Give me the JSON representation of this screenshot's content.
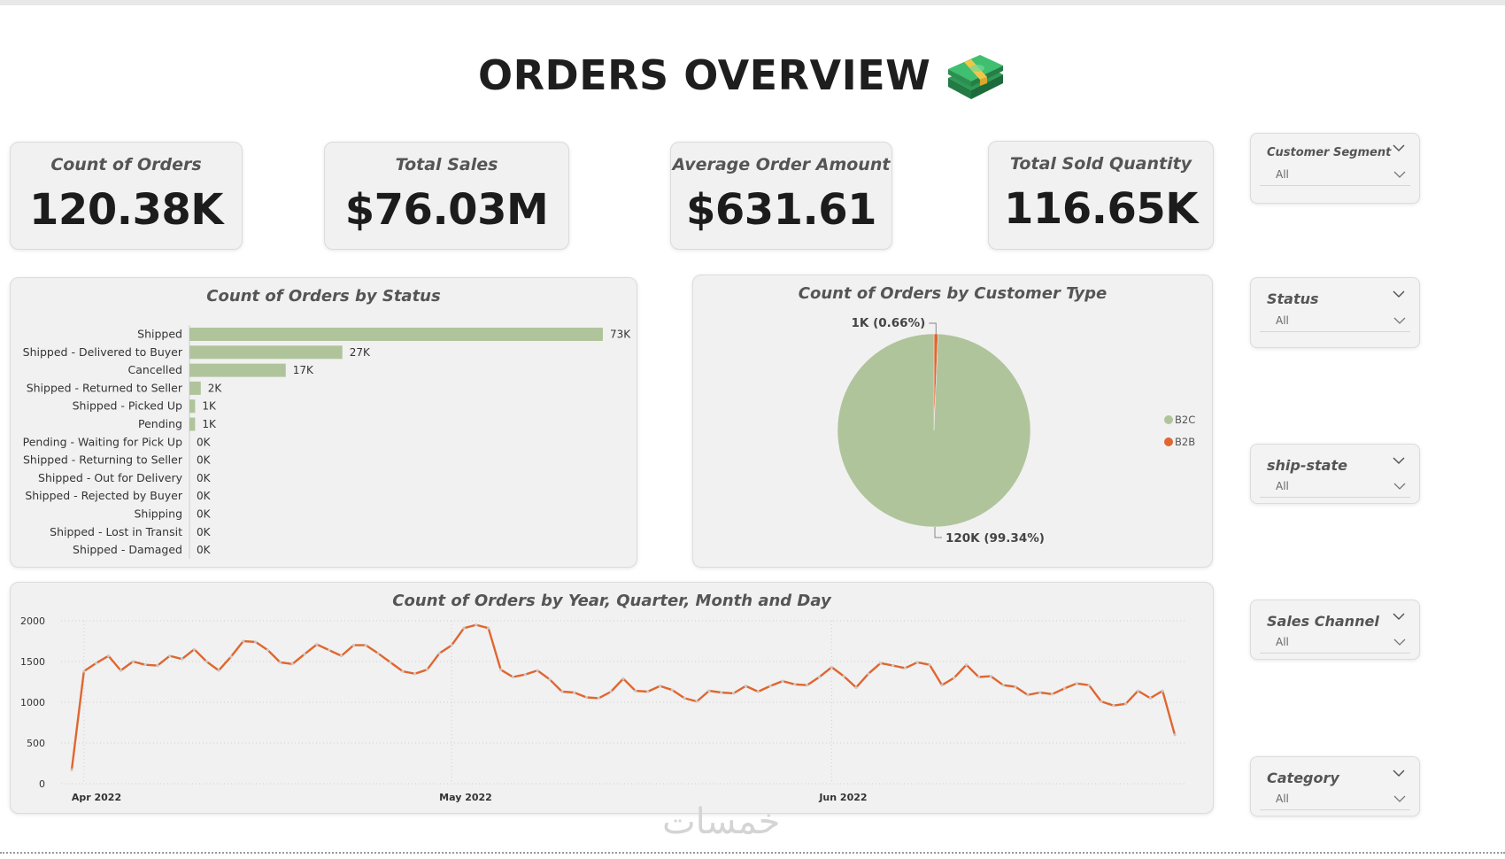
{
  "title": "ORDERS OVERVIEW",
  "kpis": [
    {
      "label": "Count of Orders",
      "value": "120.38K"
    },
    {
      "label": "Total Sales",
      "value": "$76.03M"
    },
    {
      "label": "Average Order Amount",
      "value": "$631.61"
    },
    {
      "label": "Total Sold Quantity",
      "value": "116.65K"
    }
  ],
  "colors": {
    "bar": "#b0c49b",
    "line": "#e0662f",
    "pie_b2c": "#b0c49b",
    "pie_b2b": "#e0662f",
    "panel": "#f1f1f1"
  },
  "chart_data": [
    {
      "type": "bar",
      "orientation": "horizontal",
      "title": "Count of Orders by Status",
      "categories": [
        "Shipped",
        "Shipped - Delivered to Buyer",
        "Cancelled",
        "Shipped - Returned to Seller",
        "Shipped - Picked Up",
        "Pending",
        "Pending - Waiting for Pick Up",
        "Shipped - Returning to Seller",
        "Shipped - Out for Delivery",
        "Shipped - Rejected by Buyer",
        "Shipping",
        "Shipped - Lost in Transit",
        "Shipped - Damaged"
      ],
      "values": [
        73000,
        27000,
        17000,
        2000,
        1000,
        1000,
        0,
        0,
        0,
        0,
        0,
        0,
        0
      ],
      "data_labels": [
        "73K",
        "27K",
        "17K",
        "2K",
        "1K",
        "1K",
        "0K",
        "0K",
        "0K",
        "0K",
        "0K",
        "0K",
        "0K"
      ]
    },
    {
      "type": "pie",
      "title": "Count of Orders by Customer Type",
      "slices": [
        {
          "name": "B2C",
          "value": 119600,
          "label": "120K (99.34%)"
        },
        {
          "name": "B2B",
          "value": 800,
          "label": "1K (0.66%)"
        }
      ],
      "legend": [
        "B2C",
        "B2B"
      ],
      "legend_position": "right"
    },
    {
      "type": "line",
      "title": "Count of Orders by Year, Quarter, Month and Day",
      "x_start": "2022-03-31",
      "x_end": "2022-06-29",
      "x_ticks": [
        "Apr 2022",
        "May 2022",
        "Jun 2022"
      ],
      "y_ticks": [
        "0",
        "500",
        "1000",
        "1500",
        "2000"
      ],
      "ylim": [
        0,
        2000
      ],
      "values": [
        170,
        1380,
        1480,
        1570,
        1390,
        1500,
        1460,
        1450,
        1570,
        1530,
        1650,
        1500,
        1390,
        1560,
        1750,
        1740,
        1640,
        1490,
        1470,
        1590,
        1710,
        1640,
        1570,
        1700,
        1700,
        1600,
        1490,
        1380,
        1350,
        1400,
        1600,
        1700,
        1910,
        1950,
        1910,
        1400,
        1310,
        1340,
        1390,
        1280,
        1130,
        1120,
        1060,
        1050,
        1130,
        1290,
        1140,
        1130,
        1200,
        1150,
        1050,
        1010,
        1140,
        1120,
        1110,
        1200,
        1130,
        1200,
        1260,
        1220,
        1210,
        1310,
        1430,
        1320,
        1180,
        1350,
        1480,
        1450,
        1420,
        1490,
        1460,
        1210,
        1300,
        1460,
        1310,
        1320,
        1210,
        1190,
        1090,
        1120,
        1100,
        1170,
        1230,
        1210,
        1010,
        960,
        980,
        1140,
        1050,
        1140,
        600
      ]
    }
  ],
  "slicers": [
    {
      "title": "Customer Segment",
      "value": "All"
    },
    {
      "title": "Status",
      "value": "All"
    },
    {
      "title": "ship-state",
      "value": "All"
    },
    {
      "title": "Sales Channel",
      "value": "All"
    },
    {
      "title": "Category",
      "value": "All"
    }
  ],
  "watermark": "خمسات"
}
